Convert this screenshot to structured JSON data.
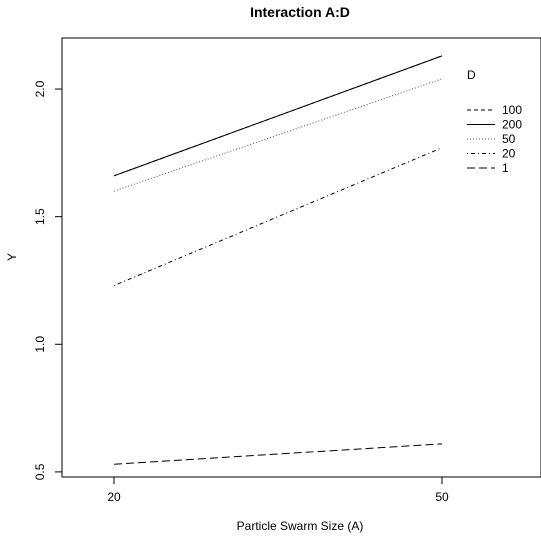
{
  "chart_data": {
    "type": "line",
    "title": "Interaction A:D",
    "xlabel": "Particle Swarm Size (A)",
    "ylabel": "Y",
    "categories": [
      "20",
      "50"
    ],
    "yticks": [
      "0.5",
      "1.0",
      "1.5",
      "2.0"
    ],
    "ylim": [
      0.48,
      2.2
    ],
    "legend_title": "D",
    "legend_position": "right",
    "grid": false,
    "series": [
      {
        "name": "100",
        "values": [
          1.66,
          2.13
        ],
        "linestyle": "dashed",
        "color": "#000000"
      },
      {
        "name": "200",
        "values": [
          1.66,
          2.13
        ],
        "linestyle": "solid",
        "color": "#000000"
      },
      {
        "name": "50",
        "values": [
          1.6,
          2.04
        ],
        "linestyle": "dotted",
        "color": "#555555"
      },
      {
        "name": "20",
        "values": [
          1.23,
          1.77
        ],
        "linestyle": "dotdash",
        "color": "#000000"
      },
      {
        "name": "1",
        "values": [
          0.53,
          0.61
        ],
        "linestyle": "longdash",
        "color": "#000000"
      }
    ]
  }
}
